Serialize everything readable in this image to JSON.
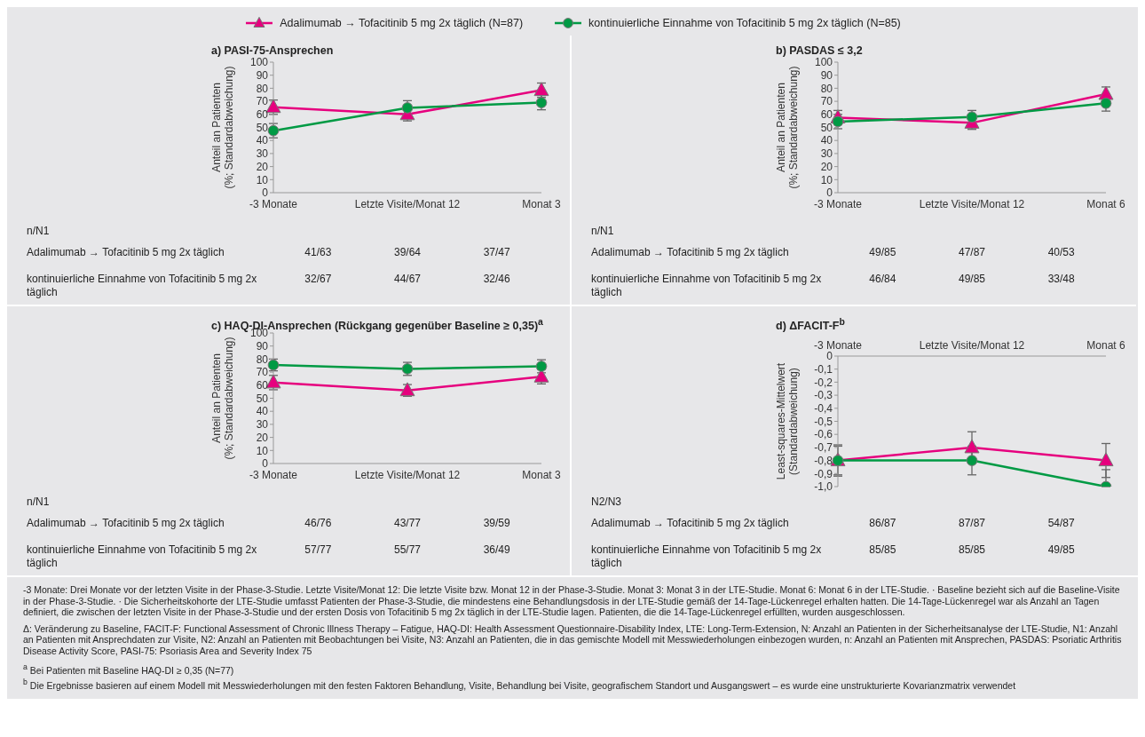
{
  "chart_data": [
    {
      "type": "line",
      "title": "a) PASI-75-Ansprechen",
      "ylabel": "Anteil an Patienten\n(%; Standardabweichung)",
      "categories": [
        "-3 Monate",
        "Letzte Visite/Monat 12",
        "Monat 3"
      ],
      "ylim": [
        0,
        100
      ],
      "yticks": [
        0,
        10,
        20,
        30,
        40,
        50,
        60,
        70,
        80,
        90,
        100
      ],
      "legend": "top",
      "series": [
        {
          "name": "Adalimumab → Tofacitinib 5 mg 2x täglich (N=87)",
          "color": "#e6007e",
          "marker": "triangle",
          "values": [
            65.5,
            60,
            78.5
          ],
          "errors": [
            5.5,
            5,
            5.5
          ]
        },
        {
          "name": "kontinuierliche Einnahme von Tofacitinib 5 mg 2x täglich (N=85)",
          "color": "#009a44",
          "marker": "circle",
          "values": [
            47.5,
            65,
            69
          ],
          "errors": [
            5.5,
            5.5,
            5.5
          ]
        }
      ],
      "annotations": [
        "n/N1",
        "Adalimumab → Tofacitinib 5 mg 2x täglich",
        "41/63",
        "39/64",
        "37/47",
        "kontinuierliche Einnahme von Tofacitinib 5 mg 2x täglich",
        "32/67",
        "44/67",
        "32/46"
      ]
    },
    {
      "type": "line",
      "title": "b) PASDAS ≤ 3,2",
      "ylabel": "Anteil an Patienten\n(%; Standardabweichung)",
      "categories": [
        "-3 Monate",
        "Letzte Visite/Monat 12",
        "Monat 6"
      ],
      "ylim": [
        0,
        100
      ],
      "yticks": [
        0,
        10,
        20,
        30,
        40,
        50,
        60,
        70,
        80,
        90,
        100
      ],
      "series": [
        {
          "color": "#e6007e",
          "marker": "triangle",
          "values": [
            57.5,
            53.5,
            75.5
          ],
          "errors": [
            5.5,
            5,
            5.5
          ]
        },
        {
          "color": "#009a44",
          "marker": "circle",
          "values": [
            54.5,
            58,
            68.5
          ],
          "errors": [
            5.5,
            5,
            6
          ]
        }
      ],
      "annotations": [
        "n/N1",
        "Adalimumab → Tofacitinib 5 mg 2x täglich",
        "49/85",
        "47/87",
        "40/53",
        "kontinuierliche Einnahme von Tofacitinib 5 mg 2x täglich",
        "46/84",
        "49/85",
        "33/48"
      ]
    },
    {
      "type": "line",
      "title": "c) HAQ-DI-Ansprechen (Rückgang gegenüber Baseline ≥ 0,35)$^{a}$",
      "ylabel": "Anteil an Patienten\n(%; Standardabweichung)",
      "categories": [
        "-3 Monate",
        "Letzte Visite/Monat 12",
        "Monat 3"
      ],
      "ylim": [
        0,
        100
      ],
      "yticks": [
        0,
        10,
        20,
        30,
        40,
        50,
        60,
        70,
        80,
        90,
        100
      ],
      "series": [
        {
          "color": "#e6007e",
          "marker": "triangle",
          "values": [
            62,
            56,
            66.5
          ],
          "errors": [
            5.5,
            4.5,
            5.5
          ]
        },
        {
          "color": "#009a44",
          "marker": "circle",
          "values": [
            75.5,
            72.5,
            74.5
          ],
          "errors": [
            4.5,
            5,
            5
          ]
        }
      ],
      "annotations": [
        "n/N1",
        "Adalimumab → Tofacitinib 5 mg 2x täglich",
        "46/76",
        "43/77",
        "39/59",
        "kontinuierliche Einnahme von Tofacitinib 5 mg 2x täglich",
        "57/77",
        "55/77",
        "36/49"
      ]
    },
    {
      "type": "line",
      "title": "d) ΔFACIT-F$^{b}$",
      "ylabel": "Least-squares-Mittelwert\n(Standardabweichung)",
      "categories": [
        "-3 Monate",
        "Letzte Visite/Monat 12",
        "Monat 6"
      ],
      "ylim": [
        -1.0,
        0
      ],
      "yticks": [
        {
          "value": 0,
          "label": "0"
        },
        {
          "value": -0.1,
          "label": "-0,1"
        },
        {
          "value": -0.2,
          "label": "-0,2"
        },
        {
          "value": -0.3,
          "label": "-0,3"
        },
        {
          "value": -0.4,
          "label": "-0,4"
        },
        {
          "value": -0.5,
          "label": "-0,5"
        },
        {
          "value": -0.6,
          "label": "-0,6"
        },
        {
          "value": -0.7,
          "label": "-0,7"
        },
        {
          "value": -0.8,
          "label": "-0,8"
        },
        {
          "value": -0.9,
          "label": "-0,9"
        },
        {
          "value": -1.0,
          "label": "-1,0"
        }
      ],
      "series": [
        {
          "color": "#e6007e",
          "marker": "triangle",
          "values": [
            -0.8,
            -0.7,
            -0.8
          ],
          "errors": [
            0.12,
            0.12,
            0.13
          ]
        },
        {
          "color": "#009a44",
          "marker": "circle",
          "values": [
            -0.8,
            -0.8,
            -1.0
          ],
          "errors": [
            0.11,
            0.11,
            [
              -1.0,
              -0.87
            ]
          ]
        }
      ],
      "annotations": [
        "N2/N3",
        "Adalimumab → Tofacitinib 5 mg 2x täglich",
        "86/87",
        "87/87",
        "54/87",
        "kontinuierliche Einnahme von Tofacitinib 5 mg 2x täglich",
        "85/85",
        "85/85",
        "49/85",
        "-3 Monate: Drei Monate vor der letzten Visite in der Phase-3-Studie. Letzte Visite/Monat 12: Die letzte Visite bzw. Monat 12 in der Phase-3-Studie. Monat 3: Monat 3 in der LTE-Studie. Monat 6: Monat 6 in der LTE-Studie. · Baseline bezieht sich auf die Baseline-Visite in der Phase-3-Studie. · Die Sicherheitskohorte der LTE-Studie umfasst Patienten der Phase-3-Studie, die mindestens eine Behandlungsdosis in der LTE-Studie gemäß der 14-Tage-Lückenregel erhalten hatten. Die 14-Tage-Lückenregel war als Anzahl an Tagen definiert, die zwischen der letzten Visite in der Phase-3-Studie und der ersten Dosis von Tofacitinib 5 mg 2x täglich in der LTE-Studie lagen. Patienten, die die 14-Tage-Lückenregel erfüllten, wurden ausgeschlossen.",
        "Δ: Veränderung zu Baseline, FACIT-F: Functional Assessment of Chronic Illness Therapy – Fatigue, HAQ-DI: Health Assessment Questionnaire-Disability Index, LTE: Long-Term-Extension, N: Anzahl an Patienten in der Sicherheitsanalyse der LTE-Studie, N1: Anzahl an Patienten mit Ansprechdaten zur Visite, N2: Anzahl an Patienten mit Beobachtungen bei Visite, N3: Anzahl an Patienten, die in das gemischte Modell mit Messwiederholungen einbezogen wurden, n: Anzahl an Patienten mit Ansprechen, PASDAS: Psoriatic Arthritis Disease Activity Score, PASI-75: Psoriasis Area and Severity Index 75",
        "$^{a}$ Bei Patienten mit Baseline HAQ-DI ≥ 0,35 (N=77)",
        "$^{b}$ Die Ergebnisse basieren auf einem Modell mit Messwiederholungen mit den festen Faktoren Behandlung, Visite, Behandlung bei Visite, geografischem Standort und Ausgangswert – es wurde eine unstrukturierte Kovarianzmatrix verwendet"
      ]
    }
  ]
}
